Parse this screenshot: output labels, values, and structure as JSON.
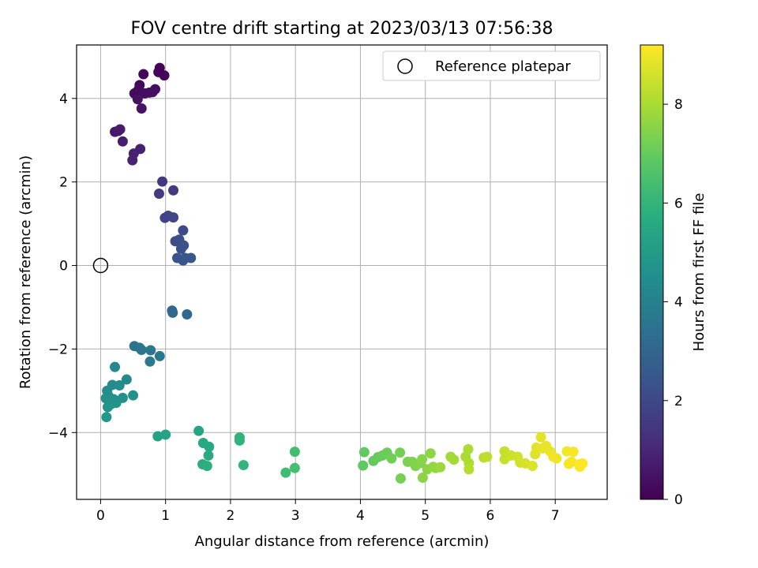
{
  "chart_data": {
    "type": "scatter",
    "title": "FOV centre drift starting at 2023/03/13 07:56:38",
    "xlabel": "Angular distance from reference (arcmin)",
    "ylabel": "Rotation from reference (arcmin)",
    "xlim": [
      -0.37,
      7.8
    ],
    "ylim": [
      -5.6,
      5.28
    ],
    "xticks": [
      0,
      1,
      2,
      3,
      4,
      5,
      6,
      7
    ],
    "yticks": [
      -4,
      -2,
      0,
      2,
      4
    ],
    "grid": true,
    "legend": {
      "placement": "top-right",
      "entries": [
        "Reference platepar"
      ]
    },
    "reference": {
      "x": 0,
      "y": 0
    },
    "colorbar": {
      "label": "Hours from first FF file",
      "range": [
        0,
        9.2
      ],
      "ticks": [
        0,
        2,
        4,
        6,
        8
      ],
      "colormap": "viridis"
    },
    "points": [
      [
        0.91,
        4.73,
        0.05
      ],
      [
        0.89,
        4.63,
        0.08
      ],
      [
        0.98,
        4.55,
        0.12
      ],
      [
        0.66,
        4.58,
        0.15
      ],
      [
        0.6,
        4.32,
        0.2
      ],
      [
        0.52,
        4.12,
        0.25
      ],
      [
        0.58,
        4.2,
        0.28
      ],
      [
        0.68,
        4.12,
        0.3
      ],
      [
        0.75,
        4.14,
        0.33
      ],
      [
        0.84,
        4.22,
        0.35
      ],
      [
        0.8,
        4.15,
        0.38
      ],
      [
        0.57,
        3.98,
        0.42
      ],
      [
        0.63,
        3.76,
        0.45
      ],
      [
        0.22,
        3.2,
        0.6
      ],
      [
        0.27,
        3.22,
        0.63
      ],
      [
        0.3,
        3.26,
        0.66
      ],
      [
        0.34,
        2.97,
        0.7
      ],
      [
        0.61,
        2.79,
        0.8
      ],
      [
        0.51,
        2.68,
        0.85
      ],
      [
        0.49,
        2.52,
        0.9
      ],
      [
        0.95,
        2.01,
        1.5
      ],
      [
        0.9,
        1.72,
        1.55
      ],
      [
        1.12,
        1.8,
        1.6
      ],
      [
        0.99,
        1.14,
        1.8
      ],
      [
        1.04,
        1.19,
        1.85
      ],
      [
        1.12,
        1.15,
        1.9
      ],
      [
        1.27,
        0.84,
        2.1
      ],
      [
        1.15,
        0.58,
        2.15
      ],
      [
        1.21,
        0.62,
        2.2
      ],
      [
        1.24,
        0.4,
        2.25
      ],
      [
        1.28,
        0.48,
        2.3
      ],
      [
        1.18,
        0.18,
        2.35
      ],
      [
        1.27,
        0.12,
        2.4
      ],
      [
        1.3,
        0.18,
        2.45
      ],
      [
        1.39,
        0.18,
        2.5
      ],
      [
        1.1,
        -1.08,
        3.0
      ],
      [
        1.11,
        -1.13,
        3.05
      ],
      [
        1.33,
        -1.17,
        3.1
      ],
      [
        0.52,
        -1.93,
        3.5
      ],
      [
        0.6,
        -1.97,
        3.55
      ],
      [
        0.63,
        -2.02,
        3.6
      ],
      [
        0.77,
        -2.03,
        3.65
      ],
      [
        0.91,
        -2.17,
        3.7
      ],
      [
        0.76,
        -2.3,
        3.75
      ],
      [
        0.22,
        -2.43,
        4.3
      ],
      [
        0.4,
        -2.73,
        4.35
      ],
      [
        0.18,
        -2.86,
        4.4
      ],
      [
        0.29,
        -2.87,
        4.45
      ],
      [
        0.1,
        -3.0,
        4.5
      ],
      [
        0.12,
        -3.12,
        4.55
      ],
      [
        0.08,
        -3.18,
        4.6
      ],
      [
        0.2,
        -3.2,
        4.6
      ],
      [
        0.34,
        -3.17,
        4.65
      ],
      [
        0.5,
        -3.11,
        4.7
      ],
      [
        0.24,
        -3.29,
        4.75
      ],
      [
        0.11,
        -3.39,
        4.8
      ],
      [
        0.16,
        -3.32,
        4.8
      ],
      [
        0.09,
        -3.63,
        4.9
      ],
      [
        0.88,
        -4.09,
        5.3
      ],
      [
        1.0,
        -4.05,
        5.35
      ],
      [
        1.51,
        -3.96,
        5.4
      ],
      [
        1.58,
        -4.25,
        5.5
      ],
      [
        1.67,
        -4.34,
        5.55
      ],
      [
        1.66,
        -4.55,
        5.6
      ],
      [
        1.57,
        -4.76,
        5.7
      ],
      [
        1.64,
        -4.8,
        5.75
      ],
      [
        2.14,
        -4.12,
        5.9
      ],
      [
        2.14,
        -4.19,
        5.95
      ],
      [
        2.2,
        -4.78,
        6.0
      ],
      [
        2.85,
        -4.96,
        6.3
      ],
      [
        2.99,
        -4.46,
        6.4
      ],
      [
        2.99,
        -4.85,
        6.45
      ],
      [
        4.04,
        -4.79,
        6.9
      ],
      [
        4.06,
        -4.47,
        6.95
      ],
      [
        4.2,
        -4.68,
        7.0
      ],
      [
        4.27,
        -4.59,
        7.05
      ],
      [
        4.34,
        -4.55,
        7.1
      ],
      [
        4.41,
        -4.48,
        7.15
      ],
      [
        4.48,
        -4.62,
        7.2
      ],
      [
        4.61,
        -4.48,
        7.25
      ],
      [
        4.62,
        -5.1,
        7.3
      ],
      [
        4.73,
        -4.7,
        7.35
      ],
      [
        4.8,
        -4.7,
        7.4
      ],
      [
        4.85,
        -4.8,
        7.45
      ],
      [
        4.93,
        -4.73,
        7.5
      ],
      [
        4.95,
        -4.64,
        7.55
      ],
      [
        4.96,
        -5.08,
        7.6
      ],
      [
        5.03,
        -4.88,
        7.6
      ],
      [
        5.08,
        -4.5,
        7.65
      ],
      [
        5.12,
        -4.82,
        7.7
      ],
      [
        5.16,
        -4.85,
        7.75
      ],
      [
        5.23,
        -4.83,
        7.8
      ],
      [
        5.39,
        -4.58,
        7.9
      ],
      [
        5.44,
        -4.65,
        7.95
      ],
      [
        5.62,
        -4.58,
        8.0
      ],
      [
        5.66,
        -4.4,
        8.05
      ],
      [
        5.67,
        -4.73,
        8.1
      ],
      [
        5.67,
        -4.88,
        8.15
      ],
      [
        5.9,
        -4.6,
        8.25
      ],
      [
        5.95,
        -4.58,
        8.3
      ],
      [
        6.22,
        -4.45,
        8.4
      ],
      [
        6.22,
        -4.64,
        8.45
      ],
      [
        6.32,
        -4.55,
        8.5
      ],
      [
        6.42,
        -4.58,
        8.55
      ],
      [
        6.46,
        -4.72,
        8.6
      ],
      [
        6.54,
        -4.74,
        8.65
      ],
      [
        6.65,
        -4.8,
        8.7
      ],
      [
        6.69,
        -4.52,
        8.75
      ],
      [
        6.71,
        -4.36,
        8.8
      ],
      [
        6.78,
        -4.11,
        8.85
      ],
      [
        6.8,
        -4.38,
        8.9
      ],
      [
        6.86,
        -4.32,
        8.9
      ],
      [
        6.92,
        -4.45,
        8.95
      ],
      [
        6.97,
        -4.58,
        9.0
      ],
      [
        7.02,
        -4.62,
        9.0
      ],
      [
        7.18,
        -4.45,
        9.05
      ],
      [
        7.21,
        -4.75,
        9.1
      ],
      [
        7.25,
        -4.7,
        9.1
      ],
      [
        7.28,
        -4.46,
        9.12
      ],
      [
        7.37,
        -4.76,
        9.15
      ],
      [
        7.42,
        -4.74,
        9.18
      ],
      [
        7.38,
        -4.82,
        9.2
      ]
    ]
  }
}
